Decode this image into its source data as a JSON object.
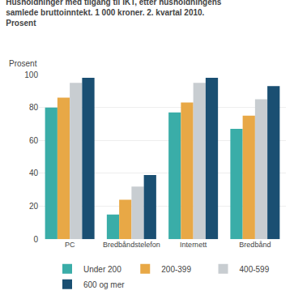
{
  "chart_data": {
    "type": "bar",
    "title": "Husholdninger med tilgang til IKT, etter husholdningens\nsamlede bruttoinntekt. 1 000 kroner. 2. kvartal 2010.\nProsent",
    "ylabel": "Prosent",
    "categories": [
      "PC",
      "Bredbåndstelefon",
      "Internett",
      "Bredbånd"
    ],
    "series": [
      {
        "name": "Under 200",
        "color": "#3aada8",
        "values": [
          80,
          15,
          77,
          67
        ]
      },
      {
        "name": "200-399",
        "color": "#e8a846",
        "values": [
          86,
          24,
          83,
          75
        ]
      },
      {
        "name": "400-599",
        "color": "#c8cdd1",
        "values": [
          95,
          32,
          95,
          85
        ]
      },
      {
        "name": "600 og mer",
        "color": "#1a4f72",
        "values": [
          98,
          39,
          98,
          93
        ]
      }
    ],
    "ylim": [
      0,
      100
    ],
    "yticks": [
      0,
      20,
      40,
      60,
      80,
      100
    ],
    "grid": true,
    "legend": "bottom"
  }
}
